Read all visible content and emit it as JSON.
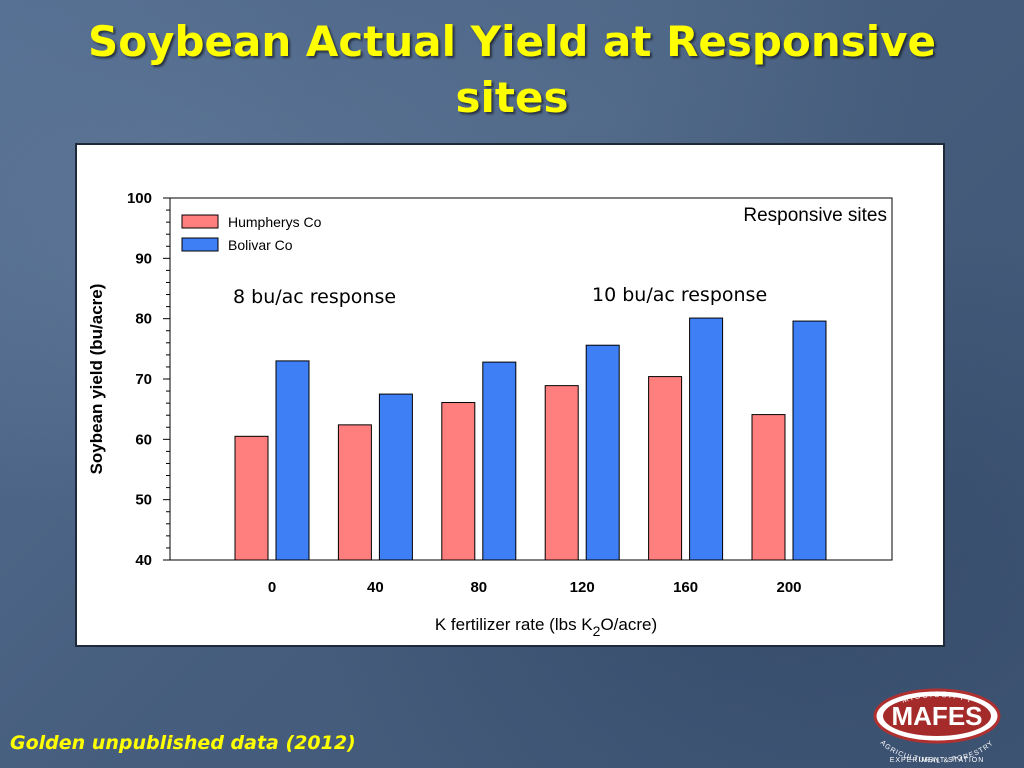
{
  "slide": {
    "title_line1": "Soybean Actual Yield at Responsive",
    "title_line2": "sites",
    "footer": "Golden unpublished data (2012)"
  },
  "logo": {
    "top_text": "MISSISSIPPI",
    "main_text": "MAFES",
    "bottom_text_1": "AGRICULTURAL & FORESTRY",
    "bottom_text_2": "EXPERIMENT STATION"
  },
  "chart_data": {
    "type": "bar",
    "categories": [
      "0",
      "40",
      "80",
      "120",
      "160",
      "200"
    ],
    "series": [
      {
        "name": "Humpherys Co",
        "color": "#ff7f7f",
        "values": [
          60.5,
          62.4,
          66.1,
          68.9,
          70.4,
          64.1
        ]
      },
      {
        "name": "Bolivar Co",
        "color": "#3f7ff5",
        "values": [
          73.0,
          67.5,
          72.8,
          75.6,
          80.1,
          79.6
        ]
      }
    ],
    "ylim": [
      40,
      100
    ],
    "yticks": [
      "40",
      "50",
      "60",
      "70",
      "80",
      "90",
      "100"
    ],
    "ylabel": "Soybean yield (bu/acre)",
    "xlabel_pre": "K fertilizer rate (lbs K",
    "xlabel_sub": "2",
    "xlabel_post": "O/acre)",
    "annotation_title": "Responsive sites",
    "annotations": [
      "8 bu/ac response",
      "10 bu/ac response"
    ],
    "legend_position": "top-left",
    "grid": false
  }
}
